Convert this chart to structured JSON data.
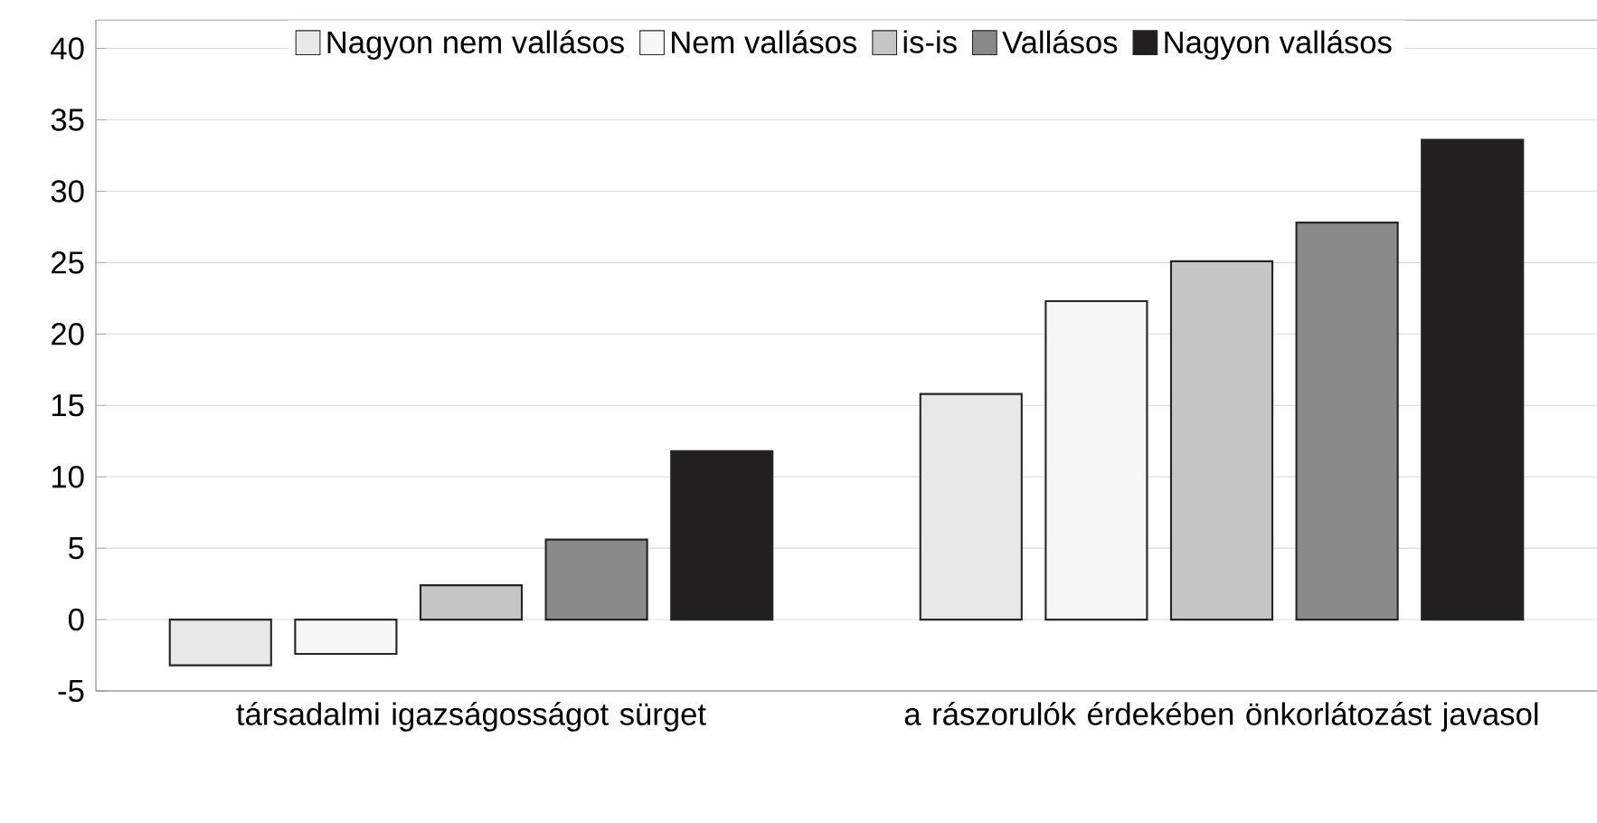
{
  "chart_data": {
    "type": "bar",
    "categories": [
      "társadalmi igazságosságot sürget",
      "a rászorulók érdekében önkorlátozást javasol"
    ],
    "series": [
      {
        "name": "Nagyon nem vallásos",
        "color": "#e8e8e8",
        "values": [
          -3.2,
          15.8
        ]
      },
      {
        "name": "Nem vallásos",
        "color": "#f7f7f7",
        "values": [
          -2.4,
          22.3
        ]
      },
      {
        "name": "is-is",
        "color": "#c6c6c6",
        "values": [
          2.4,
          25.1
        ]
      },
      {
        "name": "Vallásos",
        "color": "#8a8a8a",
        "values": [
          5.6,
          27.8
        ]
      },
      {
        "name": "Nagyon vallásos",
        "color": "#231f20",
        "values": [
          11.8,
          33.6
        ]
      }
    ],
    "ylim": [
      -5,
      42
    ],
    "yticks": [
      -5,
      0,
      5,
      10,
      15,
      20,
      25,
      30,
      35,
      40
    ],
    "grid": "y",
    "legend": "top"
  }
}
